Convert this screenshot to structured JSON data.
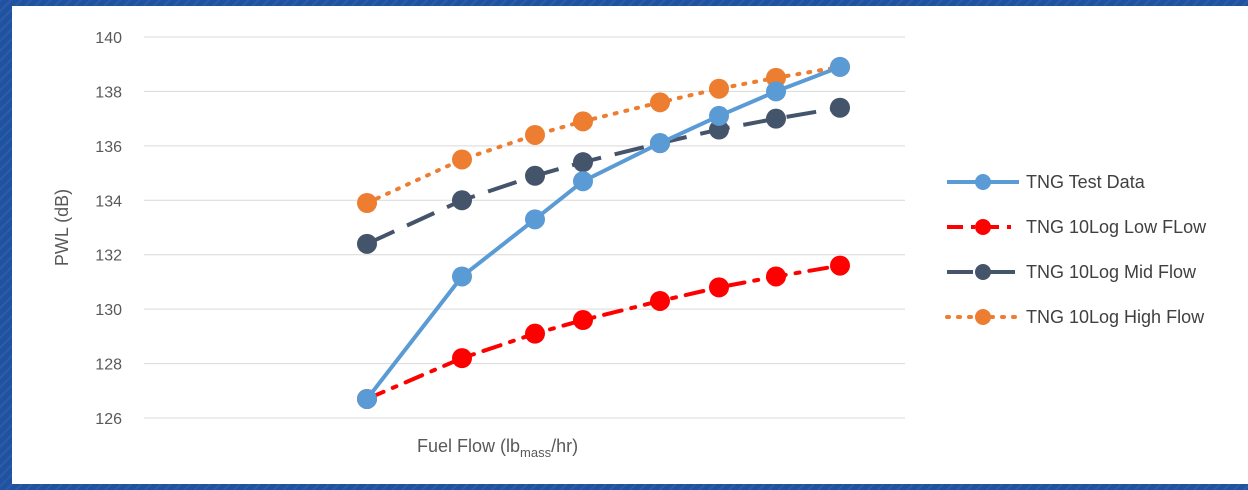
{
  "chart_data": {
    "type": "line",
    "xlabel": "Fuel Flow (lb",
    "xlabel_sub": "mass",
    "xlabel_end": "/hr)",
    "ylabel": "PWL (dB)",
    "ylim": [
      126,
      140
    ],
    "yticks": [
      "126",
      "128",
      "130",
      "132",
      "134",
      "136",
      "138",
      "140"
    ],
    "grid": true,
    "legend_position": "right",
    "x": [
      1,
      2,
      3,
      4,
      5,
      6,
      7,
      8
    ],
    "series": [
      {
        "name": "TNG Test Data",
        "color": "#5b9bd5",
        "style": "solid",
        "values": [
          126.7,
          131.2,
          133.3,
          134.7,
          136.1,
          137.1,
          138.0,
          138.9
        ]
      },
      {
        "name": "TNG 10Log Low FLow",
        "color": "#ff0000",
        "style": "dashdot",
        "values": [
          126.7,
          128.2,
          129.1,
          129.6,
          130.3,
          130.8,
          131.2,
          131.6
        ]
      },
      {
        "name": "TNG 10Log Mid Flow",
        "color": "#44546a",
        "style": "longdash",
        "values": [
          132.4,
          134.0,
          134.9,
          135.4,
          136.1,
          136.6,
          137.0,
          137.4
        ]
      },
      {
        "name": "TNG 10Log High Flow",
        "color": "#ed7d31",
        "style": "dotted",
        "values": [
          133.9,
          135.5,
          136.4,
          136.9,
          137.6,
          138.1,
          138.5,
          138.9
        ]
      }
    ]
  }
}
